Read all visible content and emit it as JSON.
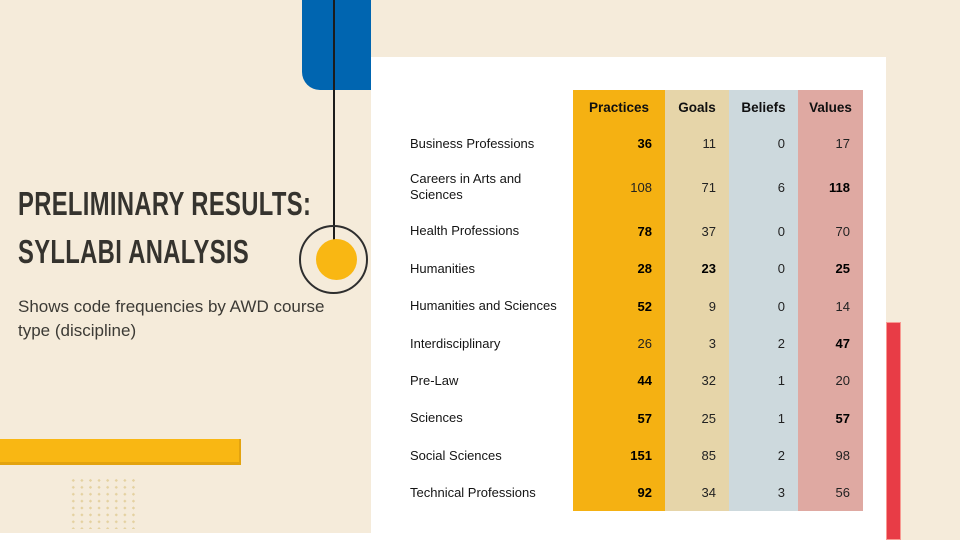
{
  "slide": {
    "title_line1": "PRELIMINARY RESULTS:",
    "title_line2": "SYLLABI ANALYSIS",
    "subtitle": "Shows code frequencies by AWD course type (discipline)"
  },
  "chart_data": {
    "type": "table",
    "title": "Preliminary Results: Syllabi Analysis",
    "subtitle": "Shows code frequencies by AWD course type (discipline)",
    "columns": [
      "Practices",
      "Goals",
      "Beliefs",
      "Values"
    ],
    "rows": [
      {
        "label": "Business Professions",
        "values": [
          36,
          11,
          0,
          17
        ],
        "bold": [
          true,
          false,
          false,
          false
        ]
      },
      {
        "label": "Careers in Arts and Sciences",
        "values": [
          108,
          71,
          6,
          118
        ],
        "bold": [
          false,
          false,
          false,
          true
        ]
      },
      {
        "label": "Health Professions",
        "values": [
          78,
          37,
          0,
          70
        ],
        "bold": [
          true,
          false,
          false,
          false
        ]
      },
      {
        "label": "Humanities",
        "values": [
          28,
          23,
          0,
          25
        ],
        "bold": [
          true,
          true,
          false,
          true
        ]
      },
      {
        "label": "Humanities and Sciences",
        "values": [
          52,
          9,
          0,
          14
        ],
        "bold": [
          true,
          false,
          false,
          false
        ]
      },
      {
        "label": "Interdisciplinary",
        "values": [
          26,
          3,
          2,
          47
        ],
        "bold": [
          false,
          false,
          false,
          true
        ]
      },
      {
        "label": "Pre-Law",
        "values": [
          44,
          32,
          1,
          20
        ],
        "bold": [
          true,
          false,
          false,
          false
        ]
      },
      {
        "label": "Sciences",
        "values": [
          57,
          25,
          1,
          57
        ],
        "bold": [
          true,
          false,
          false,
          true
        ]
      },
      {
        "label": "Social Sciences",
        "values": [
          151,
          85,
          2,
          98
        ],
        "bold": [
          true,
          false,
          false,
          false
        ]
      },
      {
        "label": "Technical Professions",
        "values": [
          92,
          34,
          3,
          56
        ],
        "bold": [
          true,
          false,
          false,
          false
        ]
      }
    ],
    "legend": "none",
    "grid": false
  },
  "colors": {
    "background": "#f5ebda",
    "panel": "#ffffff",
    "accent_blue": "#0065b0",
    "accent_yellow": "#f9b713",
    "accent_red": "#e83c46",
    "col_practices": "#f5b112",
    "col_goals": "#e6d5a9",
    "col_beliefs": "#cdd9dd",
    "col_values": "#dfa9a2",
    "dots": "#e4d1a0",
    "title_text": "#35332e",
    "body_text": "#3c3a35"
  }
}
